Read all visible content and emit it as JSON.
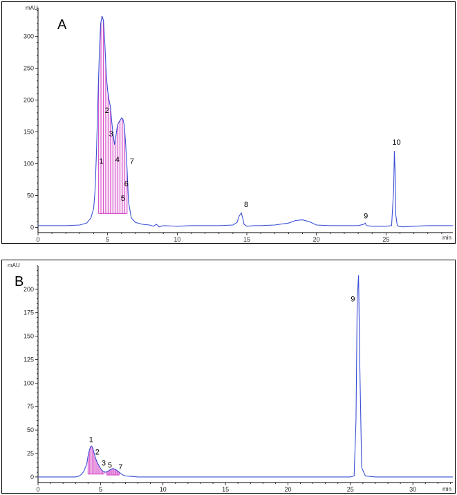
{
  "chart_data": [
    {
      "type": "line",
      "panel_label": "A",
      "ylabel": "mAU",
      "xlabel": "min",
      "xlim": [
        0,
        29.8
      ],
      "ylim": [
        -8,
        345
      ],
      "xticks": [
        0,
        5,
        10,
        15,
        20,
        25
      ],
      "yticks": [
        0,
        50,
        100,
        150,
        200,
        250,
        300
      ],
      "grid": false,
      "line_color": "#3a4fd6",
      "fill_color": "#d23cc4",
      "series": [
        {
          "x": [
            0,
            1,
            2,
            3,
            3.5,
            3.8,
            4.0,
            4.1,
            4.2,
            4.3,
            4.4,
            4.5,
            4.6,
            4.7,
            4.8,
            4.9,
            5.0,
            5.1,
            5.2,
            5.3,
            5.4,
            5.5,
            5.6,
            5.7,
            5.8,
            5.9,
            6.0,
            6.1,
            6.2,
            6.3,
            6.4,
            6.5,
            6.7,
            7.0,
            7.5,
            8.0,
            8.3,
            8.5,
            8.7,
            9.0,
            10,
            11,
            12,
            13,
            14,
            14.3,
            14.45,
            14.6,
            14.7,
            14.8,
            15.0,
            15.5,
            16,
            17,
            18,
            18.5,
            19.0,
            19.5,
            20,
            21,
            22,
            23,
            23.4,
            23.5,
            23.6,
            24,
            25,
            25.4,
            25.55,
            25.6,
            25.65,
            25.7,
            25.8,
            25.9,
            26.2,
            27,
            28,
            29,
            29.8
          ],
          "y": [
            3,
            3,
            3,
            4,
            7,
            15,
            30,
            60,
            120,
            200,
            270,
            320,
            332,
            325,
            290,
            240,
            215,
            200,
            190,
            165,
            145,
            130,
            145,
            160,
            165,
            168,
            172,
            170,
            160,
            130,
            90,
            40,
            15,
            8,
            5,
            4,
            2,
            5,
            1,
            3,
            2,
            3,
            3,
            3,
            4,
            8,
            18,
            23,
            15,
            5,
            2,
            3,
            3,
            4,
            7,
            11,
            12,
            9,
            4,
            3,
            3,
            3,
            5,
            7,
            3,
            2,
            2,
            3,
            60,
            120,
            90,
            20,
            4,
            2,
            1,
            2,
            3,
            3,
            3
          ],
          "peaks": [
            {
              "label": "1",
              "x": 4.55,
              "y": 100
            },
            {
              "label": "2",
              "x": 4.95,
              "y": 180
            },
            {
              "label": "3",
              "x": 5.25,
              "y": 143
            },
            {
              "label": "4",
              "x": 5.7,
              "y": 103
            },
            {
              "label": "5",
              "x": 6.1,
              "y": 42
            },
            {
              "label": "6",
              "x": 6.35,
              "y": 65
            },
            {
              "label": "7",
              "x": 6.75,
              "y": 100
            },
            {
              "label": "8",
              "x": 14.95,
              "y": 32
            },
            {
              "label": "9",
              "x": 23.55,
              "y": 14
            },
            {
              "label": "10",
              "x": 25.75,
              "y": 130
            }
          ],
          "shaded_peaks": [
            {
              "x0": 4.35,
              "x1": 6.4,
              "baseline": 22
            }
          ]
        }
      ]
    },
    {
      "type": "line",
      "panel_label": "B",
      "ylabel": "mAU",
      "xlabel": "min",
      "xlim": [
        0,
        33.2
      ],
      "ylim": [
        -6,
        225
      ],
      "xticks": [
        0,
        5,
        10,
        15,
        20,
        25,
        30
      ],
      "yticks": [
        0,
        25,
        50,
        75,
        100,
        125,
        150,
        175,
        200
      ],
      "grid": false,
      "line_color": "#3a4fd6",
      "fill_color": "#d23cc4",
      "series": [
        {
          "x": [
            0,
            2,
            3.0,
            3.3,
            3.5,
            3.7,
            3.9,
            4.0,
            4.1,
            4.2,
            4.3,
            4.4,
            4.5,
            4.6,
            4.8,
            5.0,
            5.2,
            5.4,
            5.6,
            5.8,
            6.0,
            6.2,
            6.4,
            6.6,
            6.8,
            7.0,
            7.5,
            8,
            9,
            10,
            12,
            15,
            18,
            20,
            22,
            24,
            25,
            25.3,
            25.45,
            25.55,
            25.65,
            25.75,
            25.9,
            26.2,
            27,
            29,
            31,
            33.2
          ],
          "y": [
            0,
            0,
            0,
            1,
            3,
            7,
            14,
            22,
            28,
            32,
            33,
            30,
            25,
            20,
            14,
            9,
            6,
            5,
            6,
            8,
            9,
            8,
            6,
            4,
            2,
            1,
            0.5,
            0,
            0,
            0,
            0,
            0,
            0,
            0,
            0,
            0,
            0,
            1,
            60,
            190,
            215,
            120,
            10,
            1,
            0,
            0,
            0,
            0
          ],
          "peaks": [
            {
              "label": "1",
              "x": 4.25,
              "y": 37
            },
            {
              "label": "2",
              "x": 4.75,
              "y": 24
            },
            {
              "label": "3",
              "x": 5.25,
              "y": 12
            },
            {
              "label": "5",
              "x": 5.75,
              "y": 10
            },
            {
              "label": "7",
              "x": 6.6,
              "y": 8
            },
            {
              "label": "9",
              "x": 25.2,
              "y": 187
            }
          ],
          "shaded_peaks": [
            {
              "x0": 4.0,
              "x1": 5.3,
              "baseline": 3
            },
            {
              "x0": 5.5,
              "x1": 6.5,
              "baseline": 2
            }
          ]
        }
      ]
    }
  ]
}
